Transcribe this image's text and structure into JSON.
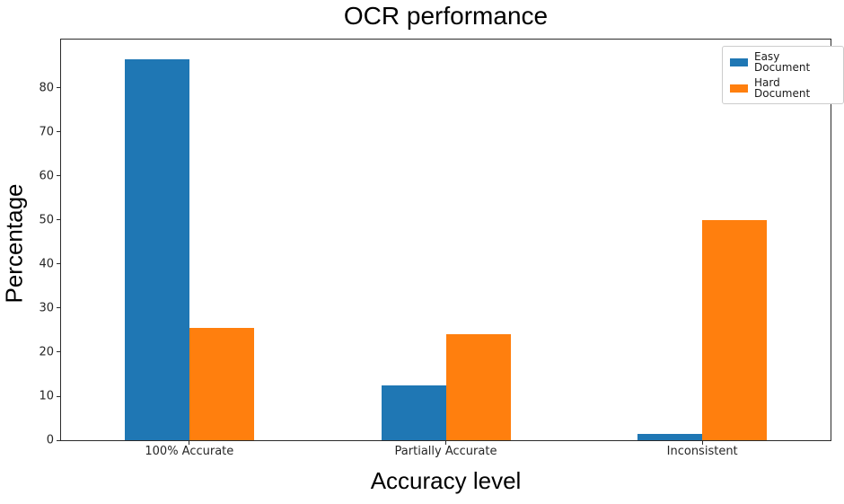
{
  "title": "OCR performance",
  "chart_data": {
    "type": "bar",
    "title": "OCR performance",
    "xlabel": "Accuracy level",
    "ylabel": "Percentage",
    "categories": [
      "100% Accurate",
      "Partially Accurate",
      "Inconsistent"
    ],
    "series": [
      {
        "name": "Easy Document",
        "color": "#1f77b4",
        "values": [
          86.5,
          12.5,
          1.5
        ]
      },
      {
        "name": "Hard Document",
        "color": "#ff7f0e",
        "values": [
          25.5,
          24,
          50
        ]
      }
    ],
    "ylim": [
      0,
      91
    ],
    "yticks": [
      0,
      10,
      20,
      30,
      40,
      50,
      60,
      70,
      80
    ],
    "grid": false,
    "legend_position": "upper right",
    "background": "#ffffff",
    "spine_color": "#2b2b2b"
  }
}
